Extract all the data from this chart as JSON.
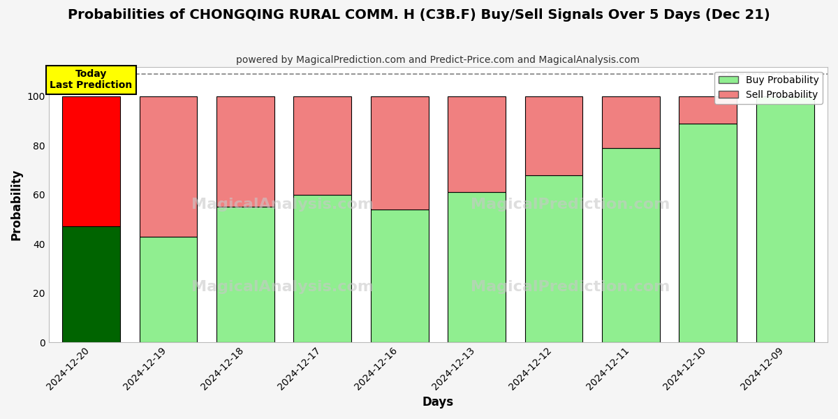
{
  "title": "Probabilities of CHONGQING RURAL COMM. H (C3B.F) Buy/Sell Signals Over 5 Days (Dec 21)",
  "subtitle": "powered by MagicalPrediction.com and Predict-Price.com and MagicalAnalysis.com",
  "xlabel": "Days",
  "ylabel": "Probability",
  "dates": [
    "2024-12-20",
    "2024-12-19",
    "2024-12-18",
    "2024-12-17",
    "2024-12-16",
    "2024-12-13",
    "2024-12-12",
    "2024-12-11",
    "2024-12-10",
    "2024-12-09"
  ],
  "buy_values": [
    47,
    43,
    55,
    60,
    54,
    61,
    68,
    79,
    89,
    100
  ],
  "sell_values": [
    53,
    57,
    45,
    40,
    46,
    39,
    32,
    21,
    11,
    0
  ],
  "today_buy_color": "#006400",
  "today_sell_color": "#ff0000",
  "buy_color": "#90ee90",
  "sell_color": "#f08080",
  "bar_edge_color": "#000000",
  "ylim": [
    0,
    112
  ],
  "yticks": [
    0,
    20,
    40,
    60,
    80,
    100
  ],
  "dashed_line_y": 109,
  "legend_buy_label": "Buy Probability",
  "legend_sell_label": "Sell Probability",
  "today_label_title": "Today",
  "today_label_sub": "Last Prediction",
  "today_box_color": "#ffff00",
  "today_box_edge": "#000000",
  "grid_color": "#ffffff",
  "plot_bg_color": "#ffffff",
  "fig_bg_color": "#f5f5f5",
  "title_fontsize": 14,
  "subtitle_fontsize": 10,
  "axis_label_fontsize": 12,
  "tick_fontsize": 10,
  "legend_fontsize": 10,
  "bar_width": 0.75,
  "watermark1": "MagicalAnalysis.com",
  "watermark2": "MagicalPrediction.com"
}
